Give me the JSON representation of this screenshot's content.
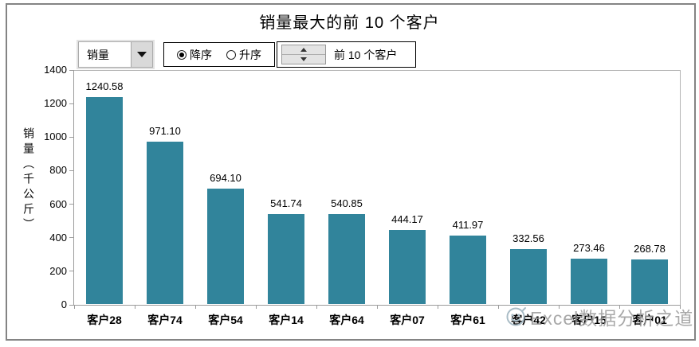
{
  "title": "销量最大的前 10 个客户",
  "controls": {
    "field_dropdown": {
      "value": "销量"
    },
    "sort_radios": [
      {
        "label": "降序",
        "selected": true
      },
      {
        "label": "升序",
        "selected": false
      }
    ],
    "top_n": {
      "label": "前 10 个客户"
    }
  },
  "watermark": {
    "text": "Excel数据分析之道"
  },
  "chart_data": {
    "type": "bar",
    "title": "销量最大的前 10 个客户",
    "categories": [
      "客户28",
      "客户74",
      "客户54",
      "客户14",
      "客户64",
      "客户07",
      "客户61",
      "客户42",
      "客户15",
      "客户01"
    ],
    "values": [
      1240.58,
      971.1,
      694.1,
      541.74,
      540.85,
      444.17,
      411.97,
      332.56,
      273.46,
      268.78
    ],
    "xlabel": "",
    "ylabel": "销量（千公斤）",
    "ylim": [
      0,
      1400
    ],
    "yticks": [
      0,
      200,
      400,
      600,
      800,
      1000,
      1200,
      1400
    ],
    "bar_color": "#31849B",
    "grid": false,
    "legend": "none",
    "data_labels": true
  }
}
